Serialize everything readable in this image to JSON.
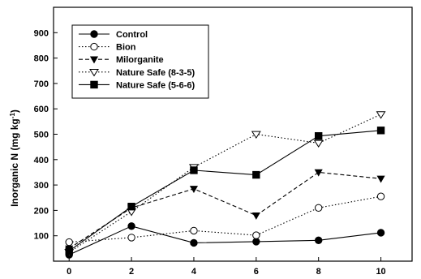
{
  "chart_data": {
    "type": "line",
    "title": "",
    "xlabel": "",
    "ylabel": "Inorganic N (mg kg",
    "ylabel_superscript": "-1",
    "ylabel_suffix": ")",
    "xlim": [
      -0.5,
      11
    ],
    "ylim": [
      0,
      1000
    ],
    "x_ticks": [
      "0",
      "2",
      "4",
      "6",
      "8",
      "10"
    ],
    "y_ticks": [
      "100",
      "200",
      "300",
      "400",
      "500",
      "600",
      "700",
      "800",
      "900"
    ],
    "grid": false,
    "legend_position": "top-left",
    "x": [
      0,
      2,
      4,
      6,
      8,
      10
    ],
    "series": [
      {
        "name": "Control",
        "values": [
          25,
          138,
          72,
          77,
          82,
          112
        ],
        "marker": "circle-filled",
        "dash": "solid"
      },
      {
        "name": "Bion",
        "values": [
          75,
          93,
          120,
          102,
          210,
          255
        ],
        "marker": "circle-open",
        "dash": "dotted"
      },
      {
        "name": "Milorganite",
        "values": [
          50,
          210,
          285,
          180,
          350,
          325
        ],
        "marker": "triangle-down-filled",
        "dash": "dashed"
      },
      {
        "name": "Nature Safe (8-3-5)",
        "values": [
          35,
          195,
          370,
          500,
          465,
          578
        ],
        "marker": "triangle-down-open",
        "dash": "dotted"
      },
      {
        "name": "Nature Safe (5-6-6)",
        "values": [
          40,
          215,
          358,
          340,
          493,
          515
        ],
        "marker": "square-filled",
        "dash": "solid"
      }
    ]
  }
}
